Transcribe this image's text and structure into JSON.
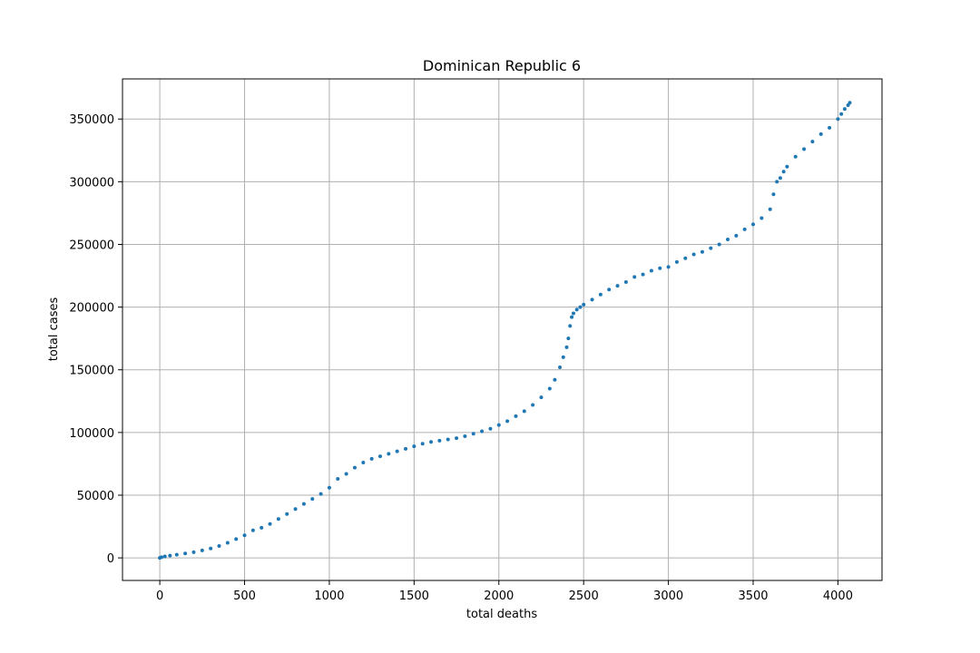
{
  "chart_data": {
    "type": "scatter",
    "title": "Dominican Republic 6",
    "xlabel": "total deaths",
    "ylabel": "total cases",
    "xlim": [
      -220,
      4260
    ],
    "ylim": [
      -18000,
      382000
    ],
    "xticks": [
      0,
      500,
      1000,
      1500,
      2000,
      2500,
      3000,
      3500,
      4000
    ],
    "xtick_labels": [
      "0",
      "500",
      "1000",
      "1500",
      "2000",
      "2500",
      "3000",
      "3500",
      "4000"
    ],
    "yticks": [
      0,
      50000,
      100000,
      150000,
      200000,
      250000,
      300000,
      350000
    ],
    "ytick_labels": [
      "0",
      "50000",
      "100000",
      "150000",
      "200000",
      "250000",
      "300000",
      "350000"
    ],
    "grid": true,
    "marker_color": "#1f77b4",
    "series": [
      {
        "x": [
          0,
          10,
          30,
          60,
          100,
          150,
          200,
          250,
          300,
          350,
          400,
          450,
          500,
          550,
          600,
          650,
          700,
          750,
          800,
          850,
          900,
          950,
          1000,
          1050,
          1100,
          1150,
          1200,
          1250,
          1300,
          1350,
          1400,
          1450,
          1500,
          1550,
          1600,
          1650,
          1700,
          1750,
          1800,
          1850,
          1900,
          1950,
          2000,
          2050,
          2100,
          2150,
          2200,
          2250,
          2300,
          2330,
          2360,
          2380,
          2400,
          2410,
          2420,
          2430,
          2440,
          2460,
          2480,
          2500,
          2550,
          2600,
          2650,
          2700,
          2750,
          2800,
          2850,
          2900,
          2950,
          3000,
          3050,
          3100,
          3150,
          3200,
          3250,
          3300,
          3350,
          3400,
          3450,
          3500,
          3550,
          3600,
          3620,
          3640,
          3660,
          3680,
          3700,
          3750,
          3800,
          3850,
          3900,
          3950,
          4000,
          4020,
          4040,
          4060,
          4070
        ],
        "y": [
          0,
          500,
          1200,
          1800,
          2500,
          3500,
          4500,
          6000,
          7500,
          9500,
          12000,
          15000,
          18000,
          22000,
          24000,
          27000,
          31000,
          35000,
          39000,
          43000,
          47000,
          51000,
          56000,
          63000,
          67000,
          72000,
          76000,
          79000,
          81000,
          83000,
          85000,
          87000,
          89000,
          91000,
          92500,
          93500,
          94500,
          95500,
          97000,
          99000,
          101000,
          103000,
          106000,
          109000,
          113000,
          117000,
          122000,
          128000,
          135000,
          142000,
          152000,
          160000,
          168000,
          175000,
          185000,
          192000,
          195000,
          198000,
          200000,
          202000,
          206000,
          210000,
          214000,
          217000,
          220000,
          224000,
          226000,
          229000,
          231000,
          232000,
          236000,
          239000,
          242000,
          244000,
          247000,
          250000,
          254000,
          257000,
          262000,
          266000,
          271000,
          278000,
          290000,
          300000,
          303000,
          308000,
          312000,
          320000,
          326000,
          332000,
          338000,
          343000,
          350000,
          354000,
          358000,
          361000,
          363000
        ]
      }
    ]
  }
}
